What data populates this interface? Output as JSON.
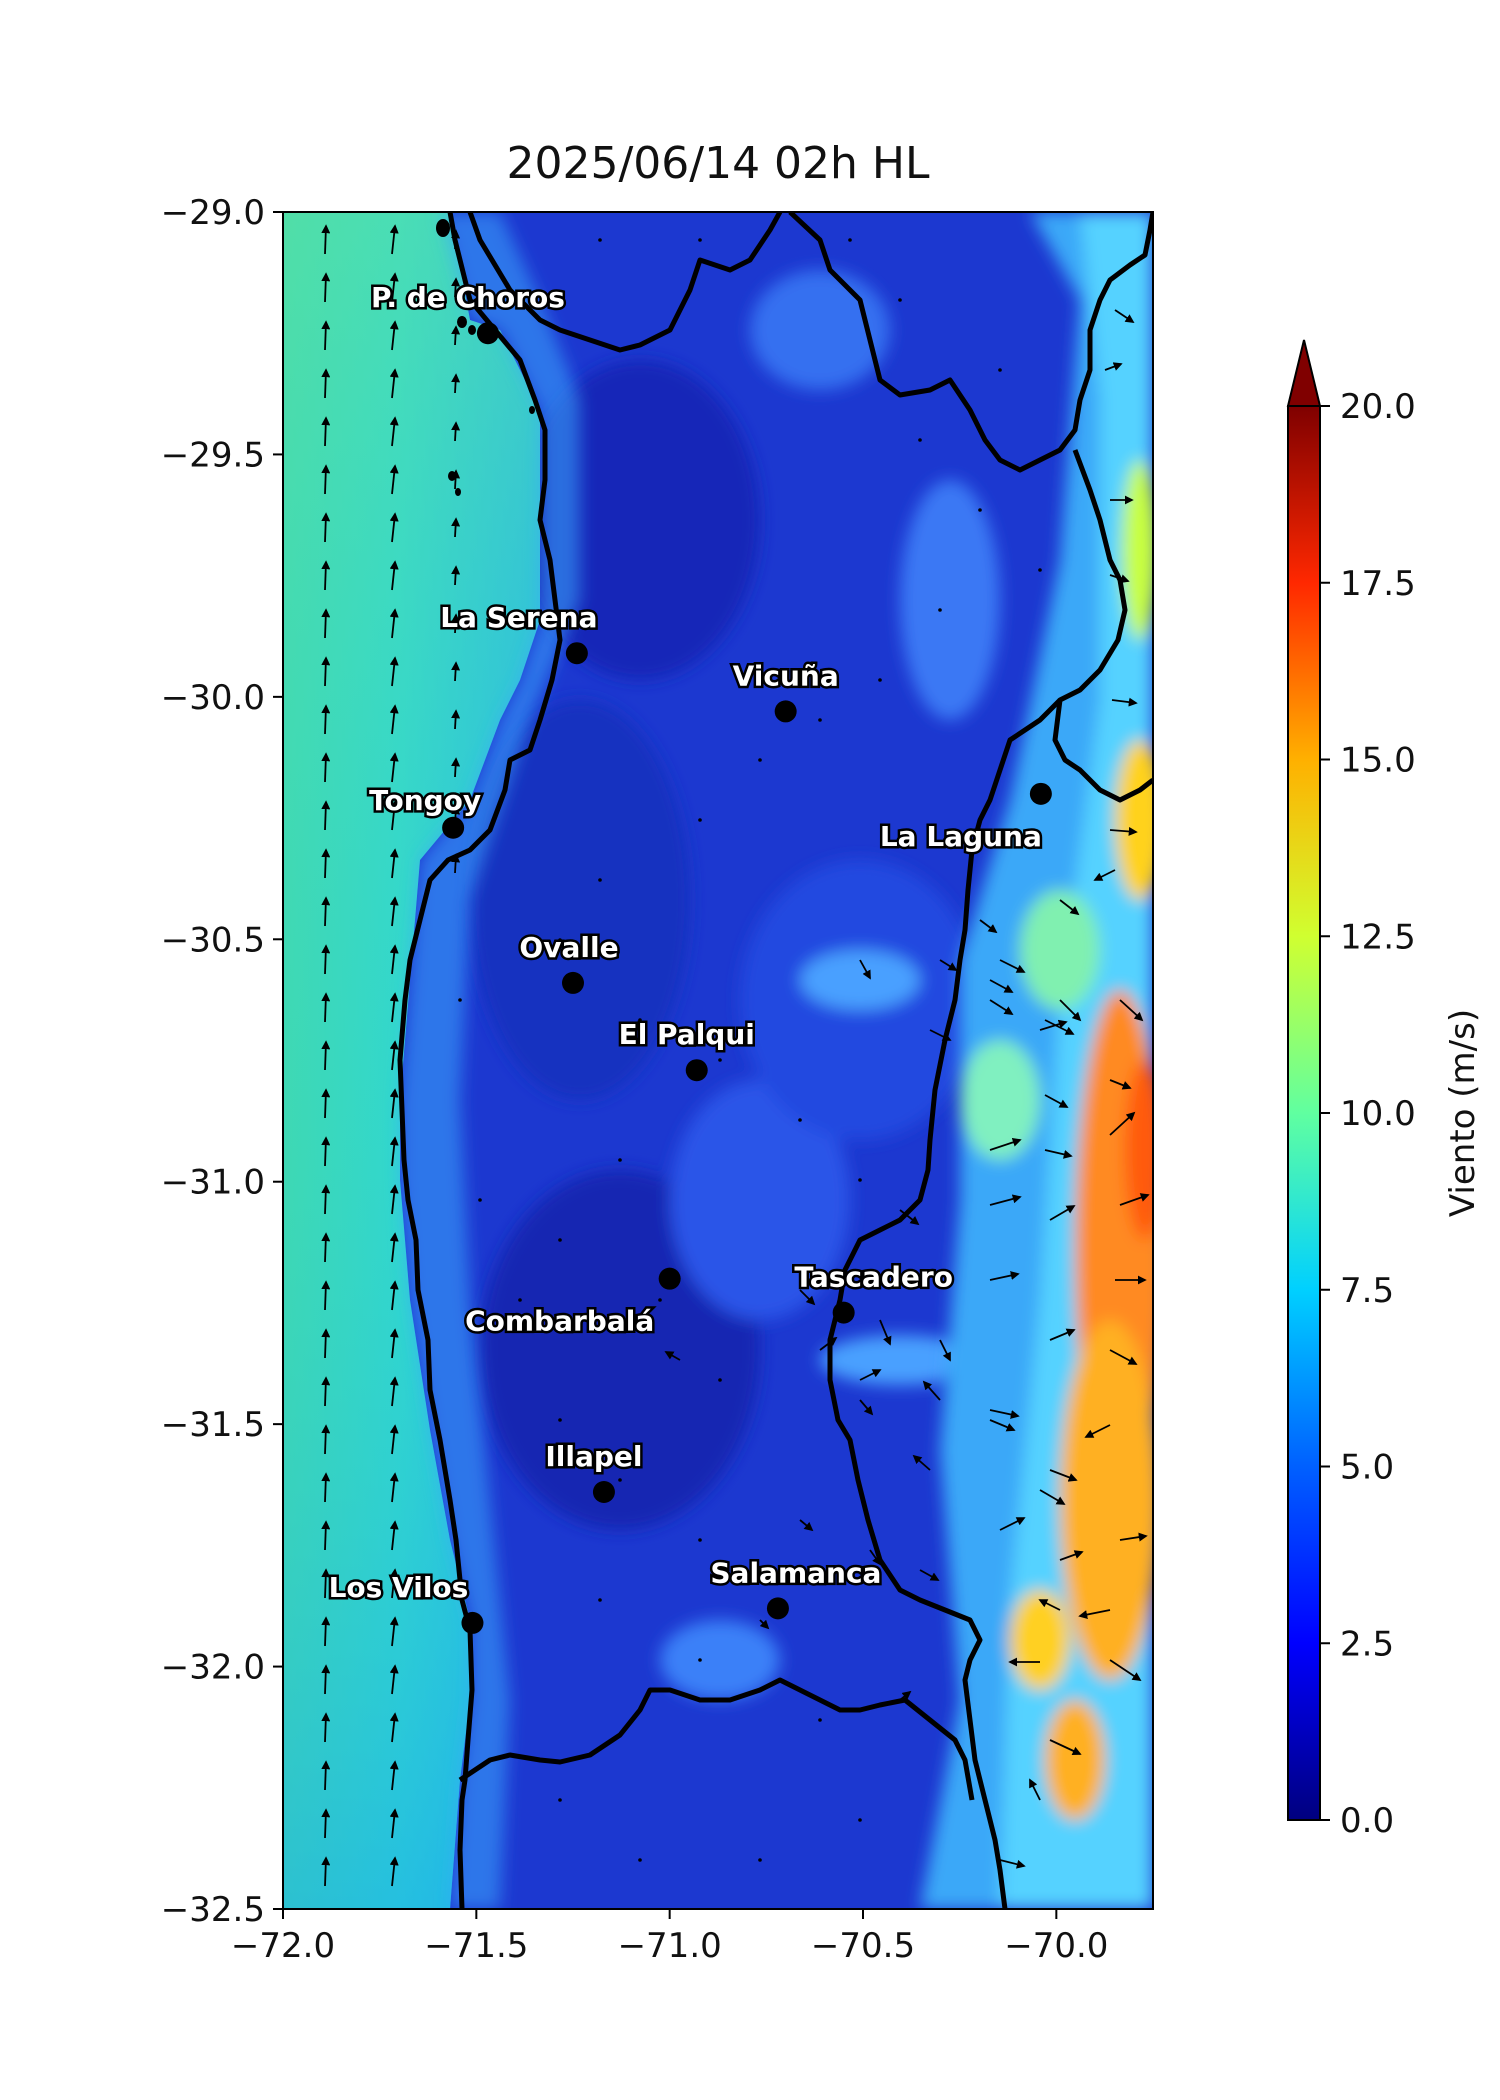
{
  "title": "2025/06/14 02h HL",
  "map": {
    "lon_range": [
      -72.0,
      -69.75
    ],
    "lat_range": [
      -32.5,
      -29.0
    ],
    "x_ticks": [
      {
        "value": -72.0,
        "label": "−72.0"
      },
      {
        "value": -71.5,
        "label": "−71.5"
      },
      {
        "value": -71.0,
        "label": "−71.0"
      },
      {
        "value": -70.5,
        "label": "−70.5"
      },
      {
        "value": -70.0,
        "label": "−70.0"
      }
    ],
    "y_ticks": [
      {
        "value": -29.0,
        "label": "−29.0"
      },
      {
        "value": -29.5,
        "label": "−29.5"
      },
      {
        "value": -30.0,
        "label": "−30.0"
      },
      {
        "value": -30.5,
        "label": "−30.5"
      },
      {
        "value": -31.0,
        "label": "−31.0"
      },
      {
        "value": -31.5,
        "label": "−31.5"
      },
      {
        "value": -32.0,
        "label": "−32.0"
      },
      {
        "value": -32.5,
        "label": "−32.5"
      }
    ],
    "cities": [
      {
        "name": "P. de Choros",
        "lon": -71.47,
        "lat": -29.25
      },
      {
        "name": "La Serena",
        "lon": -71.24,
        "lat": -29.91
      },
      {
        "name": "Vicuña",
        "lon": -70.7,
        "lat": -30.03
      },
      {
        "name": "Tongoy",
        "lon": -71.56,
        "lat": -30.27
      },
      {
        "name": "La Laguna",
        "lon": -70.04,
        "lat": -30.2
      },
      {
        "name": "Ovalle",
        "lon": -71.25,
        "lat": -30.59
      },
      {
        "name": "El Palqui",
        "lon": -70.93,
        "lat": -30.77
      },
      {
        "name": "Combarbalá",
        "lon": -71.0,
        "lat": -31.2
      },
      {
        "name": "Tascadero",
        "lon": -70.55,
        "lat": -31.27
      },
      {
        "name": "Illapel",
        "lon": -71.17,
        "lat": -31.64
      },
      {
        "name": "Los Vilos",
        "lon": -71.51,
        "lat": -31.91
      },
      {
        "name": "Salamanca",
        "lon": -70.72,
        "lat": -31.88
      }
    ]
  },
  "colorbar": {
    "label": "Viento (m/s)",
    "min": 0.0,
    "max": 20.0,
    "extend": "max",
    "ticks": [
      "0.0",
      "2.5",
      "5.0",
      "7.5",
      "10.0",
      "12.5",
      "15.0",
      "17.5",
      "20.0"
    ],
    "colormap": [
      "#00007f",
      "#0000ff",
      "#007fff",
      "#00ffff",
      "#7fff7f",
      "#ffff00",
      "#ff7f00",
      "#ff0000",
      "#7f0000"
    ]
  },
  "colors": {
    "ocean": "#33cccc",
    "inland": "#1f3bd6",
    "andes": "#58c8f0",
    "border": "#000000"
  }
}
